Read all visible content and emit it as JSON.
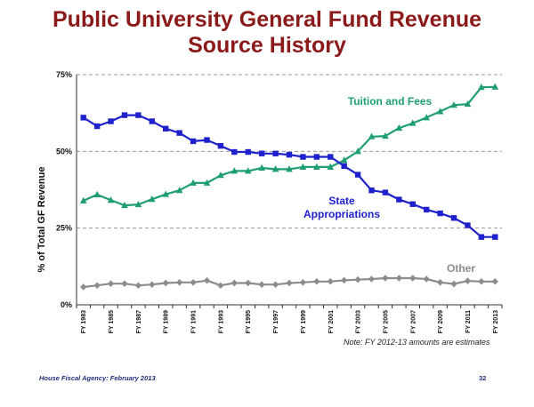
{
  "title": {
    "line1": "Public University General Fund Revenue",
    "line2": "Source History"
  },
  "note": "Note: FY 2012-13 amounts are estimates",
  "footer": {
    "source": "House Fiscal Agency:  February 2013",
    "page": "32"
  },
  "colors": {
    "title": "#8b1a1a",
    "tuition": "#1f9e74",
    "state": "#1f22cc",
    "other": "#8c8c8c",
    "footer": "#1f2f7a"
  },
  "chart_data": {
    "type": "line",
    "title": "Public University General Fund Revenue Source History",
    "ylabel": "% of Total GF Revenue",
    "xlabel": "",
    "ylim": [
      0,
      75
    ],
    "yticks": [
      "0%",
      "25%",
      "50%",
      "75%"
    ],
    "ytick_values": [
      0,
      25,
      50,
      75
    ],
    "grid": "horizontal dashed",
    "x": [
      "FY 1983",
      "FY 1984",
      "FY 1985",
      "FY 1986",
      "FY 1987",
      "FY 1988",
      "FY 1989",
      "FY 1990",
      "FY 1991",
      "FY 1992",
      "FY 1993",
      "FY 1994",
      "FY 1995",
      "FY 1996",
      "FY 1997",
      "FY 1998",
      "FY 1999",
      "FY 2000",
      "FY 2001",
      "FY 2002",
      "FY 2003",
      "FY 2004",
      "FY 2005",
      "FY 2006",
      "FY 2007",
      "FY 2008",
      "FY 2009",
      "FY 2010",
      "FY 2011",
      "FY 2012",
      "FY 2013"
    ],
    "xtick_labels": [
      "FY 1983",
      "FY 1985",
      "FY 1987",
      "FY 1989",
      "FY 1991",
      "FY 1993",
      "FY 1995",
      "FY 1997",
      "FY 1999",
      "FY 2001",
      "FY 2003",
      "FY 2005",
      "FY 2007",
      "FY 2009",
      "FY 2011",
      "FY 2013"
    ],
    "series": [
      {
        "name": "Tuition and Fees",
        "label": "Tuition and Fees",
        "marker": "triangle",
        "values": [
          33.9,
          35.9,
          34.1,
          32.4,
          32.7,
          34.4,
          36.0,
          37.3,
          39.7,
          39.7,
          42.2,
          43.6,
          43.6,
          44.6,
          44.2,
          44.2,
          44.9,
          44.9,
          44.9,
          47.1,
          50.0,
          54.8,
          55.0,
          57.6,
          59.2,
          61.0,
          63.0,
          65.1,
          65.4,
          70.9,
          71.0
        ]
      },
      {
        "name": "State Appropriations",
        "label_line1": "State",
        "label_line2": "Appropriations",
        "marker": "square",
        "values": [
          61.0,
          58.2,
          59.8,
          61.8,
          61.8,
          59.8,
          57.4,
          56.0,
          53.3,
          53.7,
          51.8,
          49.8,
          49.8,
          49.3,
          49.3,
          48.9,
          48.2,
          48.2,
          48.2,
          45.2,
          42.4,
          37.3,
          36.6,
          34.3,
          32.8,
          31.0,
          29.8,
          28.3,
          25.9,
          22.1,
          22.1
        ]
      },
      {
        "name": "Other",
        "label": "Other",
        "marker": "diamond",
        "values": [
          5.8,
          6.3,
          6.9,
          6.9,
          6.3,
          6.6,
          7.1,
          7.3,
          7.3,
          7.9,
          6.3,
          7.1,
          7.1,
          6.6,
          6.6,
          7.1,
          7.3,
          7.6,
          7.6,
          8.0,
          8.2,
          8.4,
          8.7,
          8.7,
          8.7,
          8.4,
          7.3,
          6.8,
          7.8,
          7.6,
          7.6
        ]
      }
    ]
  }
}
